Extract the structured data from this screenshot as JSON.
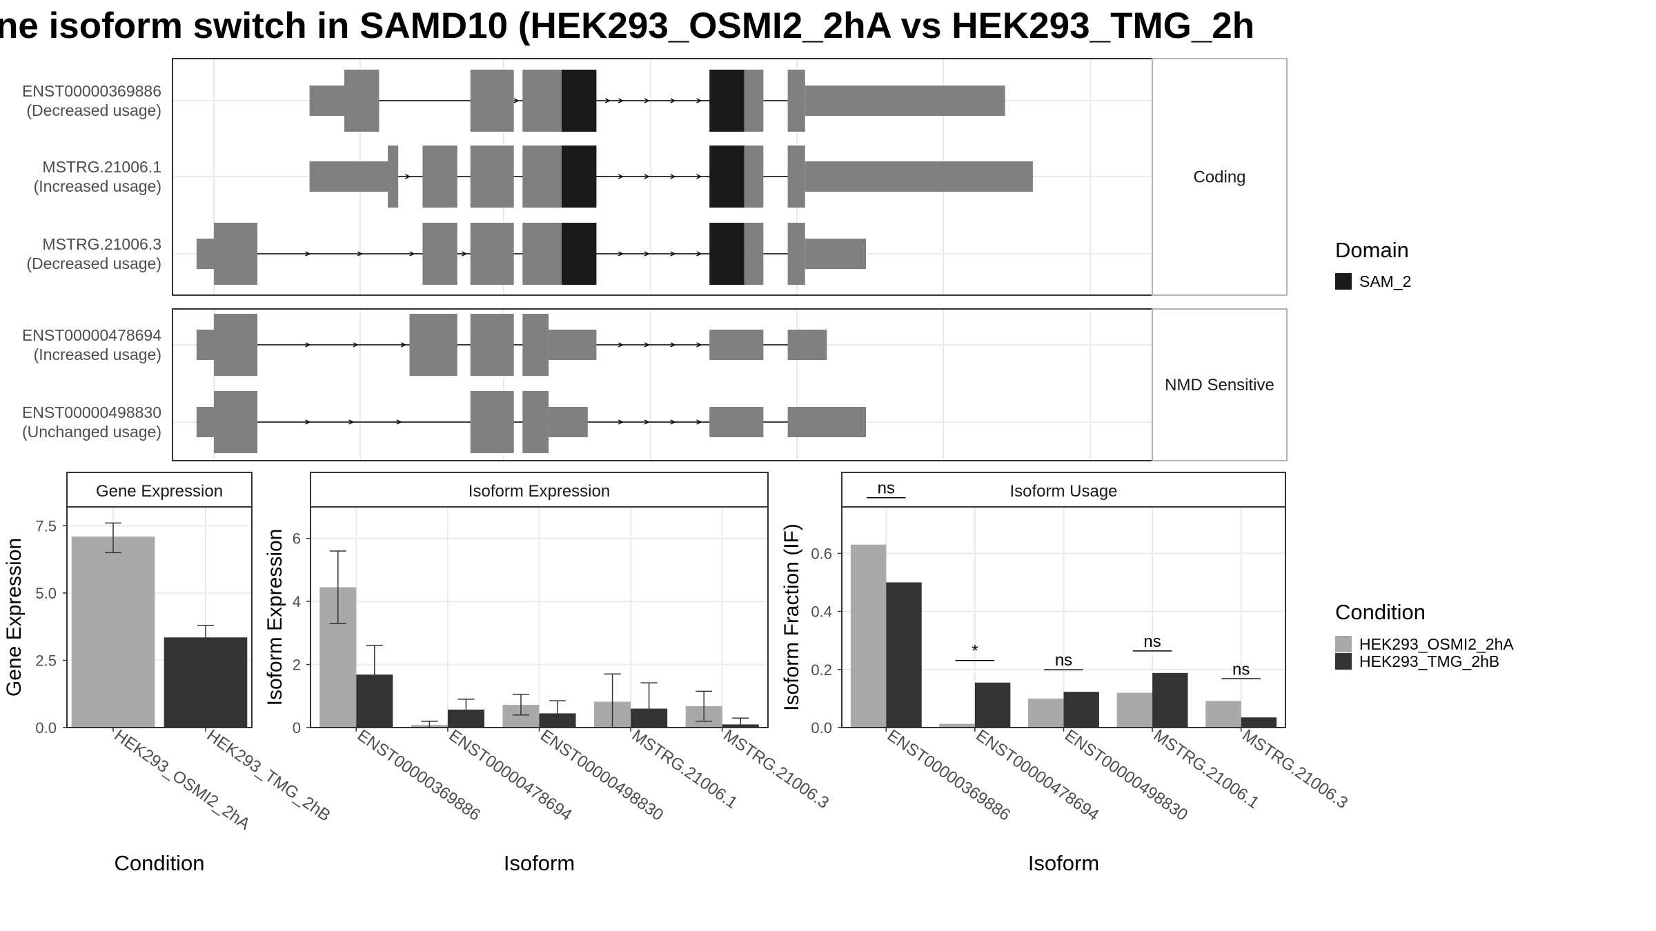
{
  "title": "ne isoform switch in SAMD10 (HEK293_OSMI2_2hA vs HEK293_TMG_2h",
  "colors": {
    "exon": "#808080",
    "domain": "#1a1a1a",
    "cond_a": "#a9a9a9",
    "cond_b": "#333333",
    "grid": "#ebebeb",
    "strip_bg": "#ffffff"
  },
  "structure": {
    "coord_range": [
      0,
      1000
    ],
    "panels": [
      {
        "strip_label": "Coding",
        "tracks": [
          {
            "label1": "ENST00000369886",
            "label2": "(Decreased usage)",
            "exons": [
              [
                110,
                150,
                "thin"
              ],
              [
                150,
                190,
                "thick"
              ],
              [
                295,
                345,
                "thick"
              ],
              [
                355,
                400,
                "thick"
              ],
              [
                400,
                440,
                "domain"
              ],
              [
                570,
                610,
                "domain"
              ],
              [
                610,
                632,
                "thick"
              ],
              [
                660,
                680,
                "thick"
              ],
              [
                680,
                910,
                "thin"
              ]
            ],
            "arrows": [
              300,
              350,
              370,
              400,
              455,
              470,
              500,
              530,
              560
            ]
          },
          {
            "label1": "MSTRG.21006.1",
            "label2": "(Increased usage)",
            "exons": [
              [
                110,
                200,
                "thin"
              ],
              [
                200,
                212,
                "thick"
              ],
              [
                240,
                280,
                "thick"
              ],
              [
                295,
                345,
                "thick"
              ],
              [
                355,
                400,
                "thick"
              ],
              [
                400,
                440,
                "domain"
              ],
              [
                570,
                610,
                "domain"
              ],
              [
                610,
                632,
                "thick"
              ],
              [
                660,
                680,
                "thick"
              ],
              [
                680,
                942,
                "thin"
              ]
            ],
            "arrows": [
              225,
              260,
              320,
              470,
              500,
              530,
              560
            ]
          },
          {
            "label1": "MSTRG.21006.3",
            "label2": "(Decreased usage)",
            "exons": [
              [
                -20,
                0,
                "thin"
              ],
              [
                0,
                50,
                "thick"
              ],
              [
                240,
                280,
                "thick"
              ],
              [
                295,
                345,
                "thick"
              ],
              [
                355,
                400,
                "thick"
              ],
              [
                400,
                440,
                "domain"
              ],
              [
                570,
                610,
                "domain"
              ],
              [
                610,
                632,
                "thick"
              ],
              [
                660,
                680,
                "thick"
              ],
              [
                680,
                750,
                "thin"
              ]
            ],
            "arrows": [
              110,
              170,
              230,
              290,
              470,
              500,
              530,
              560
            ]
          }
        ]
      },
      {
        "strip_label": "NMD Sensitive",
        "tracks": [
          {
            "label1": "ENST00000478694",
            "label2": "(Increased usage)",
            "exons": [
              [
                -20,
                0,
                "thin"
              ],
              [
                0,
                50,
                "thick"
              ],
              [
                225,
                280,
                "thick"
              ],
              [
                295,
                345,
                "thick"
              ],
              [
                355,
                385,
                "thick"
              ],
              [
                385,
                440,
                "thin"
              ],
              [
                570,
                632,
                "thin"
              ],
              [
                660,
                705,
                "thin"
              ]
            ],
            "arrows": [
              110,
              165,
              220,
              315,
              470,
              500,
              530,
              560
            ]
          },
          {
            "label1": "ENST00000498830",
            "label2": "(Unchanged usage)",
            "exons": [
              [
                -20,
                0,
                "thin"
              ],
              [
                0,
                50,
                "thick"
              ],
              [
                295,
                345,
                "thick"
              ],
              [
                355,
                385,
                "thick"
              ],
              [
                385,
                430,
                "thin"
              ],
              [
                570,
                632,
                "thin"
              ],
              [
                660,
                750,
                "thin"
              ]
            ],
            "arrows": [
              110,
              160,
              215,
              305,
              470,
              500,
              530,
              560
            ]
          }
        ]
      }
    ],
    "legend": {
      "title": "Domain",
      "items": [
        {
          "label": "SAM_2",
          "color": "#1a1a1a"
        }
      ]
    }
  },
  "chart_data": [
    {
      "type": "bar",
      "title": "Gene Expression",
      "ylabel": "Gene Expression",
      "xlabel": "Condition",
      "ylim": [
        0,
        8.2
      ],
      "ticks": [
        0.0,
        2.5,
        5.0,
        7.5
      ],
      "tick_labels": [
        "0.0",
        "2.5",
        "5.0",
        "7.5"
      ],
      "categories": [
        "HEK293_OSMI2_2hA",
        "HEK293_TMG_2hB"
      ],
      "series": [
        {
          "name": "HEK293_OSMI2_2hA",
          "values": [
            7.1,
            null
          ],
          "err_low": [
            6.5,
            null
          ],
          "err_high": [
            7.6,
            null
          ]
        },
        {
          "name": "HEK293_TMG_2hB",
          "values": [
            null,
            3.35
          ],
          "err_low": [
            null,
            2.95
          ],
          "err_high": [
            null,
            3.8
          ]
        }
      ]
    },
    {
      "type": "bar",
      "title": "Isoform Expression",
      "ylabel": "Isoform Expression",
      "xlabel": "Isoform",
      "ylim": [
        0,
        7
      ],
      "ticks": [
        0,
        2,
        4,
        6
      ],
      "tick_labels": [
        "0",
        "2",
        "4",
        "6"
      ],
      "categories": [
        "ENST00000369886",
        "ENST00000478694",
        "ENST00000498830",
        "MSTRG.21006.1",
        "MSTRG.21006.3"
      ],
      "series": [
        {
          "name": "HEK293_OSMI2_2hA",
          "values": [
            4.45,
            0.08,
            0.72,
            0.82,
            0.68
          ],
          "err_low": [
            3.3,
            0.0,
            0.4,
            0.0,
            0.2
          ],
          "err_high": [
            5.6,
            0.2,
            1.05,
            1.7,
            1.15
          ]
        },
        {
          "name": "HEK293_TMG_2hB",
          "values": [
            1.68,
            0.57,
            0.45,
            0.6,
            0.1
          ],
          "err_low": [
            0.75,
            0.25,
            0.0,
            0.0,
            0.0
          ],
          "err_high": [
            2.6,
            0.9,
            0.85,
            1.42,
            0.3
          ]
        }
      ]
    },
    {
      "type": "bar",
      "title": "Isoform Usage",
      "ylabel": "Isoform Fraction (IF)",
      "xlabel": "Isoform",
      "ylim": [
        0,
        0.76
      ],
      "ticks": [
        0.0,
        0.2,
        0.4,
        0.6
      ],
      "tick_labels": [
        "0.0",
        "0.2",
        "0.4",
        "0.6"
      ],
      "categories": [
        "ENST00000369886",
        "ENST00000478694",
        "ENST00000498830",
        "MSTRG.21006.1",
        "MSTRG.21006.3"
      ],
      "series": [
        {
          "name": "HEK293_OSMI2_2hA",
          "values": [
            0.63,
            0.013,
            0.1,
            0.12,
            0.092
          ]
        },
        {
          "name": "HEK293_TMG_2hB",
          "values": [
            0.5,
            0.155,
            0.123,
            0.188,
            0.035
          ]
        }
      ],
      "significance": [
        "ns",
        "*",
        "ns",
        "ns",
        "ns"
      ]
    }
  ],
  "condition_legend": {
    "title": "Condition",
    "items": [
      {
        "label": "HEK293_OSMI2_2hA",
        "color": "#a9a9a9"
      },
      {
        "label": "HEK293_TMG_2hB",
        "color": "#333333"
      }
    ]
  }
}
